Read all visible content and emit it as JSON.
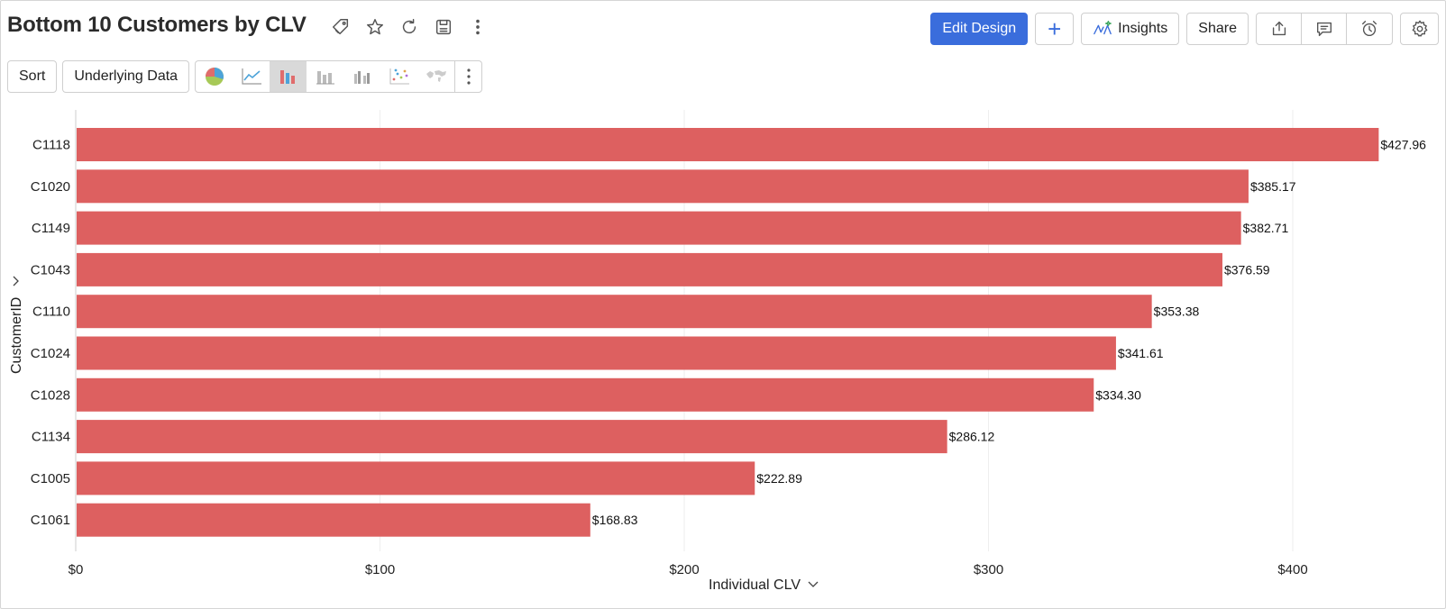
{
  "header": {
    "title": "Bottom 10 Customers by CLV",
    "icons": [
      "tag-icon",
      "star-icon",
      "refresh-icon",
      "save-icon",
      "more-vertical-icon"
    ]
  },
  "toolbar": {
    "edit_design_label": "Edit Design",
    "add_label": "+",
    "insights_label": "Insights",
    "share_label": "Share",
    "sort_label": "Sort",
    "underlying_data_label": "Underlying Data"
  },
  "colors": {
    "accent": "#3a6ddc",
    "bar": "#dd6060"
  },
  "chart_data": {
    "type": "bar",
    "orientation": "horizontal",
    "categories": [
      "C1118",
      "C1020",
      "C1149",
      "C1043",
      "C1110",
      "C1024",
      "C1028",
      "C1134",
      "C1005",
      "C1061"
    ],
    "values": [
      427.96,
      385.17,
      382.71,
      376.59,
      353.38,
      341.61,
      334.3,
      286.12,
      222.89,
      168.83
    ],
    "data_labels": [
      "$427.96",
      "$385.17",
      "$382.71",
      "$376.59",
      "$353.38",
      "$341.61",
      "$334.30",
      "$286.12",
      "$222.89",
      "$168.83"
    ],
    "xlabel": "Individual CLV",
    "ylabel": "CustomerID",
    "xlim": [
      0,
      440
    ],
    "xticks": [
      0,
      100,
      200,
      300,
      400
    ],
    "xtick_labels": [
      "$0",
      "$100",
      "$200",
      "$300",
      "$400"
    ],
    "grid": true
  }
}
